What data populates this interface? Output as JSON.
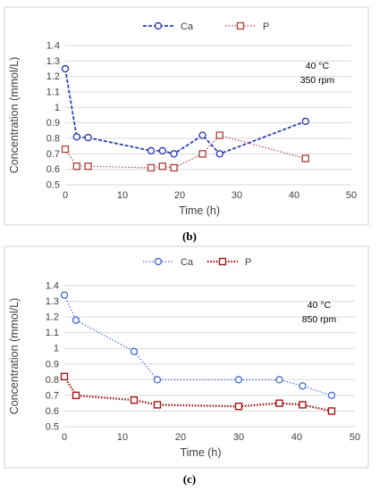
{
  "chart_data": [
    {
      "type": "line",
      "caption": "(b)",
      "xlabel": "Time (h)",
      "ylabel": "Concentration (mmol/L)",
      "xlim": [
        0,
        50
      ],
      "ylim": [
        0.5,
        1.4
      ],
      "x_ticks": [
        "0",
        "10",
        "20",
        "30",
        "40",
        "50"
      ],
      "y_ticks": [
        "0.5",
        "0.6",
        "0.7",
        "0.8",
        "0.9",
        "1",
        "1.1",
        "1.2",
        "1.3",
        "1.4"
      ],
      "grid": true,
      "legend_position": "top",
      "annotation_line1": "40 °C",
      "annotation_line2": "350 rpm",
      "series": [
        {
          "name": "Ca",
          "color": "#2f3fb0",
          "marker": "circle",
          "line_style": "dashed",
          "x": [
            0,
            2,
            4,
            15,
            17,
            19,
            24,
            27,
            42
          ],
          "y": [
            1.25,
            0.81,
            0.805,
            0.72,
            0.72,
            0.7,
            0.82,
            0.7,
            0.91
          ]
        },
        {
          "name": "P",
          "color": "#b04a45",
          "marker": "square",
          "line_style": "dotted",
          "x": [
            0,
            2,
            4,
            15,
            17,
            19,
            24,
            27,
            42
          ],
          "y": [
            0.73,
            0.62,
            0.62,
            0.61,
            0.62,
            0.61,
            0.7,
            0.82,
            0.67
          ]
        }
      ]
    },
    {
      "type": "line",
      "caption": "(c)",
      "xlabel": "Time (h)",
      "ylabel": "Concentration (mmol/L)",
      "xlim": [
        0,
        50
      ],
      "ylim": [
        0.5,
        1.4
      ],
      "x_ticks": [
        "0",
        "10",
        "20",
        "30",
        "40",
        "50"
      ],
      "y_ticks": [
        "0.5",
        "0.6",
        "0.7",
        "0.8",
        "0.9",
        "1",
        "1.1",
        "1.2",
        "1.3",
        "1.4"
      ],
      "grid": true,
      "legend_position": "top",
      "annotation_line1": "40 °C",
      "annotation_line2": "850 rpm",
      "series": [
        {
          "name": "Ca",
          "color": "#4a6fd0",
          "marker": "circle",
          "line_style": "dotted",
          "x": [
            0,
            2,
            12,
            16,
            30,
            37,
            41,
            46
          ],
          "y": [
            1.34,
            1.18,
            0.98,
            0.8,
            0.8,
            0.8,
            0.76,
            0.7
          ]
        },
        {
          "name": "P",
          "color": "#a01818",
          "marker": "square",
          "line_style": "dotted-heavy",
          "x": [
            0,
            2,
            12,
            16,
            30,
            37,
            41,
            46
          ],
          "y": [
            0.82,
            0.7,
            0.67,
            0.64,
            0.63,
            0.65,
            0.64,
            0.6
          ]
        }
      ]
    }
  ]
}
